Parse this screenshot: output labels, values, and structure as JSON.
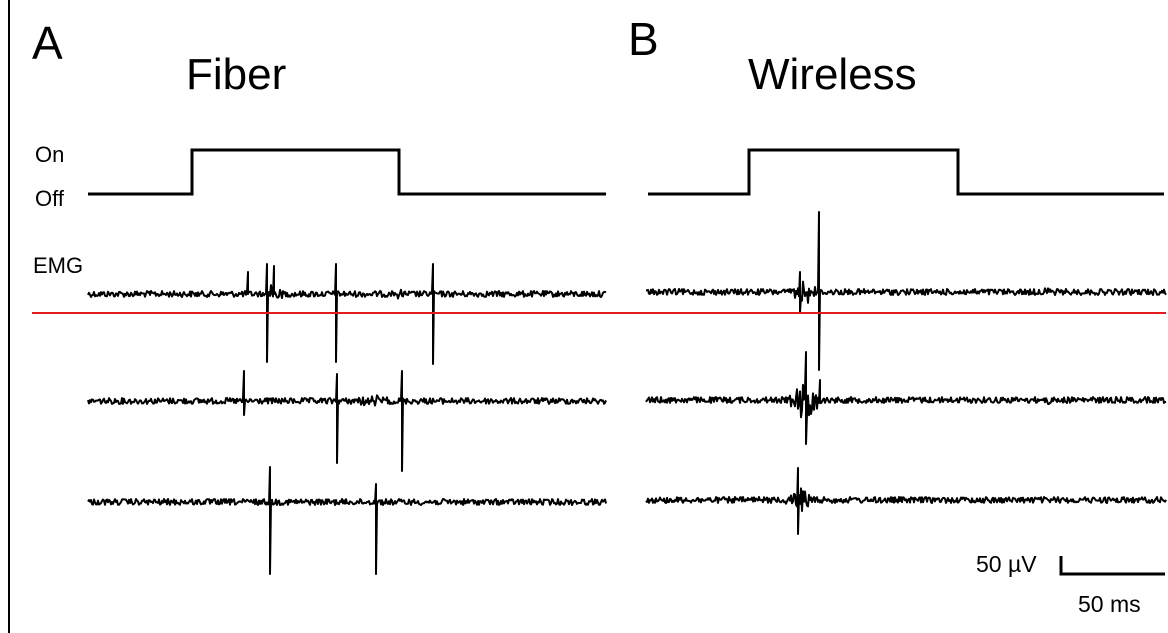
{
  "panels": [
    {
      "letter": "A",
      "title": "Fiber"
    },
    {
      "letter": "B",
      "title": "Wireless"
    }
  ],
  "labels": {
    "on": "On",
    "off": "Off",
    "emg": "EMG"
  },
  "scalebar": {
    "voltage": "50 µV",
    "time": "50 ms"
  },
  "colors": {
    "trace": "#000000",
    "marker_line": "#e31b1b",
    "background": "#ffffff"
  }
}
